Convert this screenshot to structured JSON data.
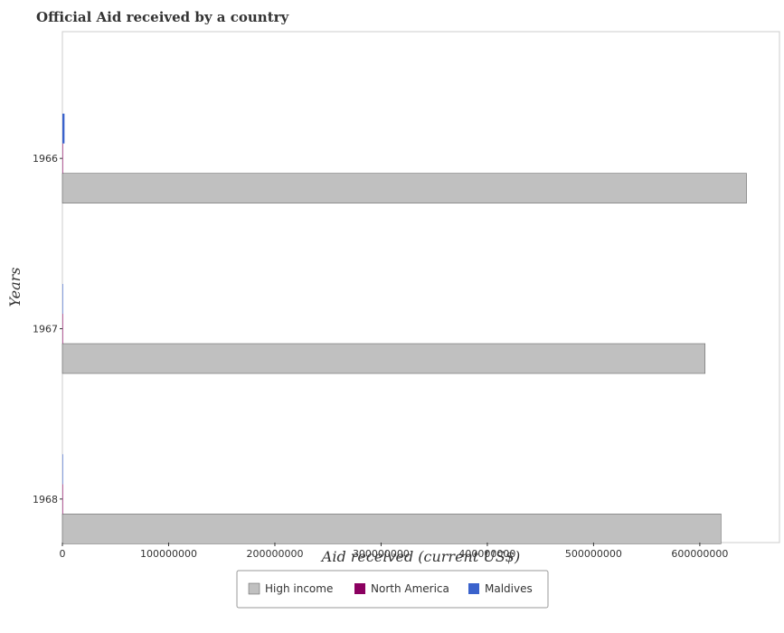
{
  "chart_data": {
    "type": "bar",
    "orientation": "horizontal",
    "title": "Official Aid received by a country",
    "xlabel": "Aid received (current US$)",
    "ylabel": "Years",
    "categories": [
      "1966",
      "1967",
      "1968"
    ],
    "series": [
      {
        "name": "High income",
        "color": "#c0c0c0",
        "values": [
          644000000,
          605000000,
          620000000
        ]
      },
      {
        "name": "North America",
        "color": "#8b0060",
        "values": [
          30000,
          20000,
          20000
        ]
      },
      {
        "name": "Maldives",
        "color": "#3a62cc",
        "values": [
          2000000,
          180000,
          260000
        ]
      }
    ],
    "xlim": [
      0,
      675000000
    ],
    "xticks": [
      0,
      100000000,
      200000000,
      300000000,
      400000000,
      500000000,
      600000000
    ],
    "xtick_labels": [
      "0",
      "100000000",
      "200000000",
      "300000000",
      "400000000",
      "500000000",
      "600000000"
    ],
    "legend_position": "bottom-center",
    "grid": false
  }
}
